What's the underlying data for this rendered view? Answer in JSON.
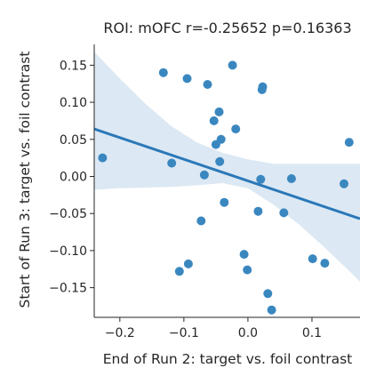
{
  "chart_data": {
    "type": "scatter",
    "title": "ROI: mOFC  r=-0.25652  p=0.16363",
    "xlabel": "End of Run 2: target vs. foil contrast",
    "ylabel": "Start of Run 3: target vs. foil contrast",
    "xlim": [
      -0.24,
      0.175
    ],
    "ylim": [
      -0.19,
      0.178
    ],
    "xticks": [
      -0.2,
      -0.1,
      0.0,
      0.1
    ],
    "xtick_labels": [
      "−0.2",
      "−0.1",
      "0.0",
      "0.1"
    ],
    "yticks": [
      -0.15,
      -0.1,
      -0.05,
      0.0,
      0.05,
      0.1,
      0.15
    ],
    "ytick_labels": [
      "−0.15",
      "−0.10",
      "−0.05",
      "0.00",
      "0.05",
      "0.10",
      "0.15"
    ],
    "grid": false,
    "colors": {
      "points": "#3a87c0",
      "line": "#2a78b8",
      "band": "#dce8f3",
      "axis": "#262626"
    },
    "points": [
      {
        "x": -0.227,
        "y": 0.025
      },
      {
        "x": -0.132,
        "y": 0.14
      },
      {
        "x": -0.119,
        "y": 0.018
      },
      {
        "x": -0.107,
        "y": -0.128
      },
      {
        "x": -0.095,
        "y": 0.132
      },
      {
        "x": -0.093,
        "y": -0.118
      },
      {
        "x": -0.073,
        "y": -0.06
      },
      {
        "x": -0.068,
        "y": 0.002
      },
      {
        "x": -0.063,
        "y": 0.124
      },
      {
        "x": -0.053,
        "y": 0.075
      },
      {
        "x": -0.05,
        "y": 0.043
      },
      {
        "x": -0.045,
        "y": 0.087
      },
      {
        "x": -0.044,
        "y": 0.02
      },
      {
        "x": -0.042,
        "y": 0.05
      },
      {
        "x": -0.037,
        "y": -0.035
      },
      {
        "x": -0.024,
        "y": 0.15
      },
      {
        "x": -0.019,
        "y": 0.064
      },
      {
        "x": -0.006,
        "y": -0.105
      },
      {
        "x": -0.001,
        "y": -0.126
      },
      {
        "x": 0.016,
        "y": -0.047
      },
      {
        "x": 0.02,
        "y": -0.004
      },
      {
        "x": 0.022,
        "y": 0.117
      },
      {
        "x": 0.023,
        "y": 0.121
      },
      {
        "x": 0.031,
        "y": -0.158
      },
      {
        "x": 0.037,
        "y": -0.18
      },
      {
        "x": 0.056,
        "y": -0.049
      },
      {
        "x": 0.068,
        "y": -0.003
      },
      {
        "x": 0.101,
        "y": -0.111
      },
      {
        "x": 0.12,
        "y": -0.117
      },
      {
        "x": 0.15,
        "y": -0.01
      },
      {
        "x": 0.158,
        "y": 0.046
      }
    ],
    "regression": {
      "x": [
        -0.24,
        0.175
      ],
      "y": [
        0.064,
        -0.057
      ]
    },
    "confidence_band": {
      "x": [
        -0.24,
        -0.2,
        -0.16,
        -0.12,
        -0.08,
        -0.04,
        0.0,
        0.04,
        0.08,
        0.12,
        0.16,
        0.175
      ],
      "upper": [
        0.168,
        0.132,
        0.098,
        0.068,
        0.046,
        0.032,
        0.023,
        0.017,
        0.017,
        0.017,
        0.017,
        0.017
      ],
      "lower": [
        -0.018,
        -0.016,
        -0.015,
        -0.014,
        -0.012,
        -0.009,
        -0.016,
        -0.038,
        -0.065,
        -0.096,
        -0.129,
        -0.142
      ]
    }
  }
}
